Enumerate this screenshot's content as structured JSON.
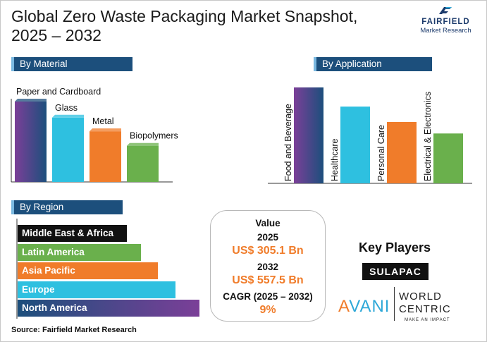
{
  "header": {
    "title_line1": "Global Zero Waste Packaging Market Snapshot,",
    "title_line2": "2025 – 2032"
  },
  "brand": {
    "name": "FAIRFIELD",
    "subtitle": "Market Research",
    "icon": "fairfield-logo-mark"
  },
  "colors": {
    "header_blue": "#1c4f7c",
    "header_accent": "#7ab8e0",
    "purple": "#7b3f98",
    "navy": "#1c4f7c",
    "cyan": "#2ec0e0",
    "orange": "#f07c2a",
    "green": "#6ab04c",
    "black": "#111111"
  },
  "material": {
    "heading": "By Material"
  },
  "application": {
    "heading": "By Application"
  },
  "region": {
    "heading": "By Region"
  },
  "chart_data": [
    {
      "type": "bar",
      "title": "By Material",
      "categories": [
        "Paper and Cardboard",
        "Glass",
        "Metal",
        "Biopolymers"
      ],
      "values": [
        100,
        80,
        63,
        45
      ],
      "ylim": [
        0,
        100
      ],
      "grid": false,
      "legend": "none",
      "note": "relative bar lengths; no value labels printed"
    },
    {
      "type": "bar",
      "title": "By Application",
      "categories": [
        "Food and Beverage",
        "Healthcare",
        "Personal Care",
        "Electrical & Electronics"
      ],
      "values": [
        100,
        80,
        64,
        52
      ],
      "ylim": [
        0,
        100
      ],
      "grid": false,
      "legend": "none",
      "note": "relative bar lengths; no value labels printed"
    },
    {
      "type": "bar",
      "orientation": "horizontal",
      "title": "By Region",
      "categories": [
        "Middle East & Africa",
        "Latin America",
        "Asia Pacific",
        "Europe",
        "North America"
      ],
      "values": [
        60,
        68,
        77,
        87,
        100
      ],
      "xlim": [
        0,
        100
      ],
      "grid": false,
      "legend": "none",
      "note": "relative bar lengths; no value labels printed"
    }
  ],
  "value_box": {
    "value_label": "Value",
    "year1": "2025",
    "value1": "US$ 305.1 Bn",
    "year2": "2032",
    "value2": "US$ 557.5 Bn",
    "cagr_label": "CAGR (2025 – 2032)",
    "cagr_value": "9%"
  },
  "key_players": {
    "heading": "Key Players",
    "player1": "SULAPAC",
    "player2_a": "A",
    "player2_rest": "VANI",
    "player3_line1": "WORLD",
    "player3_line2": "CENTRIC",
    "player3_tag": "MAKE AN IMPACT"
  },
  "footer": {
    "source": "Source: Fairfield Market Research"
  }
}
